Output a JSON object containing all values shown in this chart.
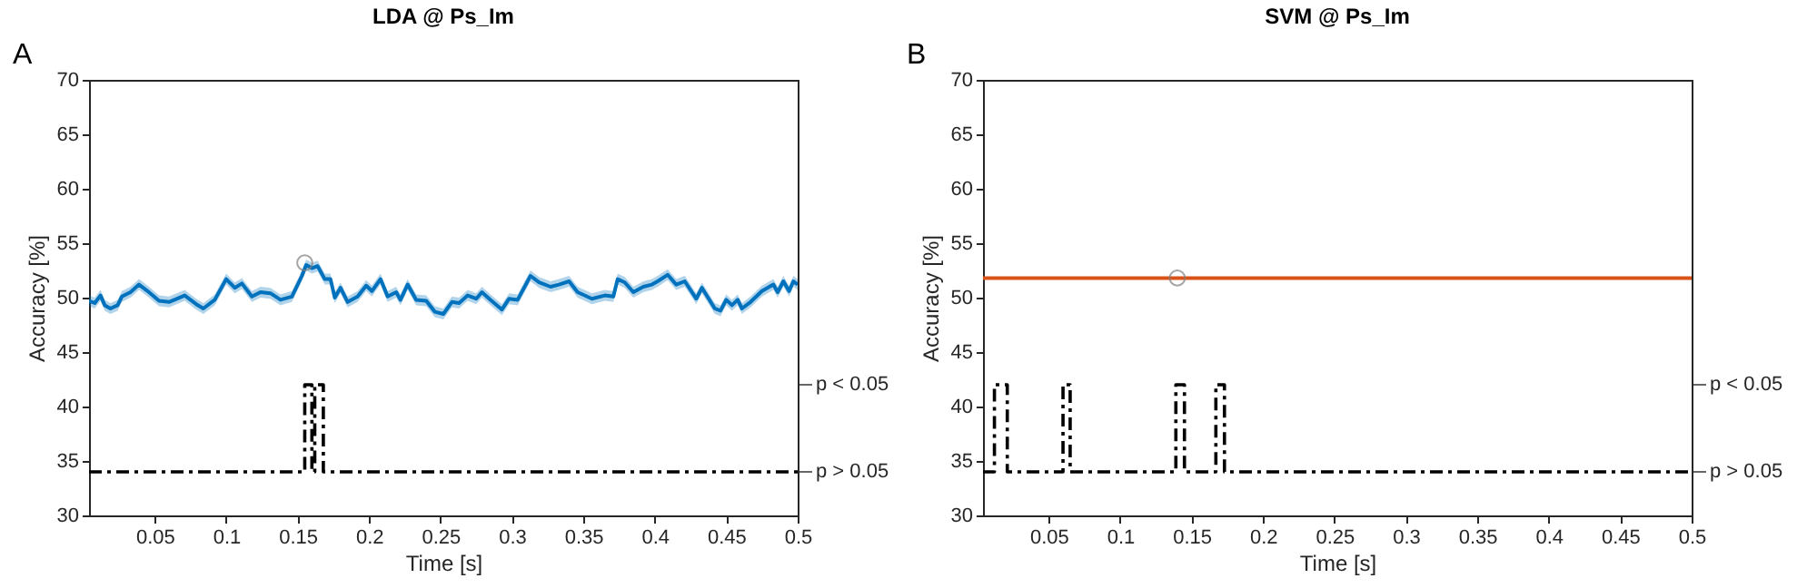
{
  "chart_data": [
    {
      "type": "line",
      "title": "LDA @ Ps_Im",
      "xlabel": "Time [s]",
      "ylabel": "Accuracy [%]",
      "annotations": [
        "A",
        "p < 0.05",
        "p > 0.05"
      ],
      "xlim": [
        0.004,
        0.5
      ],
      "xticks": [
        0.05,
        0.1,
        0.15,
        0.2,
        0.25,
        0.3,
        0.35,
        0.4,
        0.45,
        0.5
      ],
      "ylim": [
        30,
        70
      ],
      "yticks": [
        30,
        35,
        40,
        45,
        50,
        55,
        60,
        65,
        70
      ],
      "grid": false,
      "series": [
        {
          "color": "#0072bd",
          "x": [
            0.004,
            0.008,
            0.012,
            0.015,
            0.019,
            0.024,
            0.027,
            0.033,
            0.039,
            0.045,
            0.053,
            0.06,
            0.071,
            0.079,
            0.084,
            0.092,
            0.1,
            0.106,
            0.111,
            0.118,
            0.124,
            0.131,
            0.138,
            0.146,
            0.153,
            0.156,
            0.16,
            0.164,
            0.169,
            0.173,
            0.176,
            0.18,
            0.185,
            0.192,
            0.198,
            0.202,
            0.208,
            0.213,
            0.219,
            0.222,
            0.227,
            0.233,
            0.24,
            0.246,
            0.252,
            0.258,
            0.263,
            0.269,
            0.275,
            0.279,
            0.285,
            0.293,
            0.298,
            0.304,
            0.313,
            0.319,
            0.327,
            0.333,
            0.34,
            0.346,
            0.356,
            0.365,
            0.371,
            0.374,
            0.379,
            0.385,
            0.392,
            0.398,
            0.402,
            0.409,
            0.415,
            0.421,
            0.429,
            0.433,
            0.442,
            0.446,
            0.45,
            0.454,
            0.458,
            0.461,
            0.467,
            0.475,
            0.483,
            0.486,
            0.49,
            0.494,
            0.497,
            0.5
          ],
          "values": [
            49.7,
            49.5,
            50.2,
            49.3,
            49.0,
            49.3,
            50.1,
            50.5,
            51.2,
            50.6,
            49.7,
            49.6,
            50.2,
            49.4,
            49.0,
            49.8,
            51.7,
            50.9,
            51.3,
            50.1,
            50.5,
            50.4,
            49.8,
            50.1,
            52.0,
            53.0,
            52.7,
            52.9,
            51.7,
            51.7,
            50.0,
            50.9,
            49.6,
            50.1,
            51.1,
            50.6,
            51.7,
            50.1,
            50.5,
            49.8,
            51.2,
            49.8,
            49.7,
            48.7,
            48.5,
            49.6,
            49.5,
            50.2,
            49.9,
            50.5,
            49.8,
            48.9,
            49.9,
            49.8,
            52.0,
            51.4,
            51.0,
            51.2,
            51.5,
            50.5,
            49.9,
            50.2,
            50.1,
            51.7,
            51.4,
            50.5,
            51.0,
            51.2,
            51.5,
            52.1,
            51.2,
            51.5,
            49.9,
            50.9,
            49.0,
            48.8,
            49.8,
            49.3,
            49.8,
            49.0,
            49.6,
            50.6,
            51.2,
            50.5,
            51.5,
            50.6,
            51.5,
            51.2
          ],
          "lower": [
            49.2,
            49.0,
            49.7,
            48.8,
            48.5,
            48.8,
            49.6,
            50.0,
            50.7,
            50.1,
            49.2,
            49.1,
            49.7,
            48.9,
            48.5,
            49.3,
            51.2,
            50.4,
            50.8,
            49.6,
            50.0,
            49.9,
            49.3,
            49.6,
            51.5,
            52.5,
            52.2,
            52.4,
            51.2,
            51.2,
            49.5,
            50.4,
            49.1,
            49.6,
            50.6,
            50.1,
            51.2,
            49.6,
            50.0,
            49.3,
            50.7,
            49.3,
            49.2,
            48.2,
            48.0,
            49.1,
            49.0,
            49.7,
            49.4,
            50.0,
            49.3,
            48.4,
            49.4,
            49.3,
            51.5,
            50.9,
            50.5,
            50.7,
            51.0,
            50.0,
            49.4,
            49.7,
            49.6,
            51.2,
            50.9,
            50.0,
            50.5,
            50.7,
            51.0,
            51.6,
            50.7,
            51.0,
            49.4,
            50.4,
            48.5,
            48.3,
            49.3,
            48.8,
            49.3,
            48.5,
            49.1,
            50.1,
            50.7,
            50.0,
            51.0,
            50.1,
            51.0,
            50.7
          ],
          "upper": [
            50.2,
            50.0,
            50.7,
            49.8,
            49.5,
            49.8,
            50.6,
            51.0,
            51.7,
            51.1,
            50.2,
            50.1,
            50.7,
            49.9,
            49.5,
            50.3,
            52.2,
            51.4,
            51.8,
            50.6,
            51.0,
            50.9,
            50.3,
            50.6,
            52.5,
            53.5,
            53.2,
            53.4,
            52.2,
            52.2,
            50.5,
            51.4,
            50.1,
            50.6,
            51.6,
            51.1,
            52.2,
            50.6,
            51.0,
            50.3,
            51.7,
            50.3,
            50.2,
            49.2,
            49.0,
            50.1,
            50.0,
            50.7,
            50.4,
            51.0,
            50.3,
            49.4,
            50.4,
            50.3,
            52.5,
            51.9,
            51.5,
            51.7,
            52.0,
            51.0,
            50.4,
            50.7,
            50.6,
            52.2,
            51.9,
            51.0,
            51.5,
            51.7,
            52.0,
            52.6,
            51.7,
            52.0,
            50.4,
            51.4,
            49.5,
            49.3,
            50.3,
            49.8,
            50.3,
            49.5,
            50.1,
            51.1,
            51.7,
            51.0,
            52.0,
            51.1,
            52.0,
            51.7
          ]
        },
        {
          "type": "scatter",
          "color": "#808080",
          "marker": "circle",
          "x": [
            0.155
          ],
          "values": [
            53.2
          ]
        },
        {
          "type": "step",
          "color": "#000000",
          "line_style": "dashed",
          "x": [
            0.004,
            0.155,
            0.16,
            0.162,
            0.168,
            0.5
          ],
          "values": [
            34,
            42,
            34,
            42,
            34,
            34
          ]
        }
      ]
    },
    {
      "type": "line",
      "title": "SVM @ Ps_Im",
      "xlabel": "Time [s]",
      "ylabel": "Accuracy [%]",
      "annotations": [
        "B",
        "p < 0.05",
        "p > 0.05"
      ],
      "xlim": [
        0.004,
        0.5
      ],
      "xticks": [
        0.05,
        0.1,
        0.15,
        0.2,
        0.25,
        0.3,
        0.35,
        0.4,
        0.45,
        0.5
      ],
      "ylim": [
        30,
        70
      ],
      "yticks": [
        30,
        35,
        40,
        45,
        50,
        55,
        60,
        65,
        70
      ],
      "grid": false,
      "series": [
        {
          "color": "#d95319",
          "x": [
            0.004,
            0.1,
            0.2,
            0.3,
            0.4,
            0.5
          ],
          "values": [
            51.8,
            51.8,
            51.8,
            51.8,
            51.8,
            51.8
          ]
        },
        {
          "type": "scatter",
          "color": "#808080",
          "marker": "circle",
          "x": [
            0.14
          ],
          "values": [
            51.8
          ]
        },
        {
          "type": "step",
          "color": "#000000",
          "line_style": "dashed",
          "x": [
            0.004,
            0.012,
            0.021,
            0.06,
            0.065,
            0.139,
            0.145,
            0.167,
            0.173,
            0.5
          ],
          "values": [
            34,
            42,
            34,
            42,
            34,
            42,
            34,
            42,
            34,
            34
          ]
        }
      ]
    }
  ]
}
